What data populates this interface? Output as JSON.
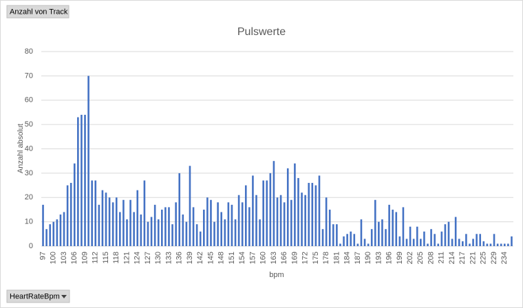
{
  "chart_data": {
    "type": "bar",
    "title": "Pulswerte",
    "x_label": "bpm",
    "y_label": "Anzahl absolut",
    "categories": [
      "97",
      null,
      null,
      "100",
      null,
      null,
      "103",
      null,
      null,
      "106",
      null,
      null,
      "109",
      null,
      null,
      "112",
      null,
      null,
      "115",
      null,
      null,
      "118",
      null,
      null,
      "121",
      null,
      null,
      "124",
      null,
      null,
      "127",
      null,
      null,
      "130",
      null,
      null,
      "133",
      null,
      null,
      "136",
      null,
      null,
      "139",
      null,
      null,
      "142",
      null,
      null,
      "145",
      null,
      null,
      "148",
      null,
      null,
      "151",
      null,
      null,
      "154",
      null,
      null,
      "157",
      null,
      null,
      "160",
      null,
      null,
      "163",
      null,
      null,
      "166",
      null,
      null,
      "169",
      null,
      null,
      "172",
      null,
      null,
      "175",
      null,
      null,
      "178",
      null,
      null,
      "181",
      null,
      null,
      "184",
      null,
      null,
      "187",
      null,
      null,
      "190",
      null,
      null,
      "193",
      null,
      null,
      "196",
      null,
      null,
      "199",
      null,
      null,
      "202",
      null,
      null,
      "205",
      null,
      null,
      "208",
      null,
      null,
      "211",
      null,
      null,
      "214",
      null,
      null,
      "217",
      null,
      null,
      "221",
      null,
      null,
      "225",
      null,
      null,
      "229",
      null,
      null,
      "234",
      null,
      null
    ],
    "values": [
      17,
      7,
      9,
      10,
      11,
      13,
      14,
      25,
      26,
      34,
      53,
      54,
      54,
      70,
      27,
      27,
      17,
      23,
      22,
      20,
      18,
      20,
      14,
      19,
      11,
      19,
      14,
      23,
      13,
      27,
      10,
      12,
      17,
      11,
      15,
      16,
      16,
      9,
      18,
      30,
      13,
      10,
      33,
      16,
      9,
      6,
      15,
      20,
      19,
      10,
      18,
      14,
      11,
      18,
      17,
      11,
      21,
      18,
      25,
      16,
      29,
      21,
      11,
      27,
      27,
      30,
      35,
      20,
      21,
      18,
      32,
      19,
      34,
      28,
      22,
      21,
      26,
      26,
      25,
      29,
      7,
      20,
      15,
      9,
      9,
      1,
      4,
      5,
      6,
      5,
      1,
      11,
      3,
      1,
      7,
      19,
      10,
      11,
      7,
      17,
      15,
      14,
      4,
      16,
      3,
      8,
      3,
      8,
      3,
      6,
      1,
      7,
      5,
      1,
      6,
      9,
      10,
      3,
      12,
      3,
      2,
      5,
      1,
      3,
      5,
      5,
      2,
      1,
      1,
      5,
      1,
      1,
      1,
      1,
      4
    ],
    "color": "#4472c4",
    "ylim": [
      0,
      80
    ],
    "yticks": [
      0,
      10,
      20,
      30,
      40,
      50,
      60,
      70,
      80
    ],
    "grid": true
  },
  "field_buttons": {
    "values_field": "Anzahl von Track",
    "axis_field": "HeartRateBpm"
  }
}
